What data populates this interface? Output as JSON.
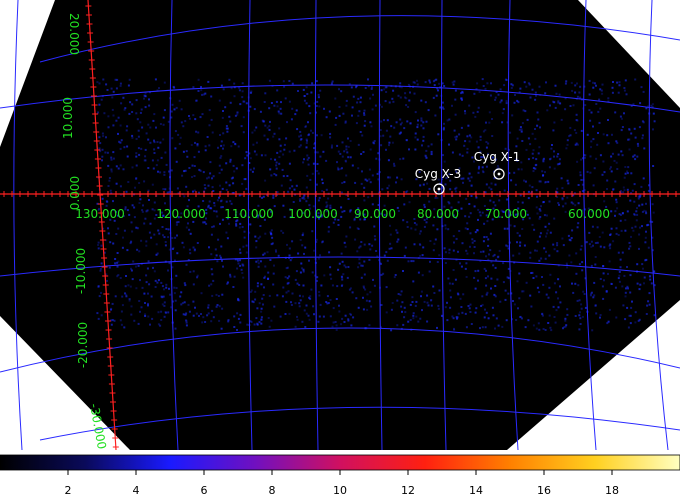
{
  "image": {
    "background_color": "#000000",
    "outside_color": "#ffffff",
    "grid_color": "#2a2aff",
    "ref_axis_color": "#ff2020",
    "label_color": "#22e022",
    "noise_color": "#1a2cff"
  },
  "coord_grid": {
    "longitude_labels": [
      "130.000",
      "120.000",
      "110.000",
      "100.000",
      "90.000",
      "80.000",
      "70.000",
      "60.000"
    ],
    "latitude_labels": [
      "20.000",
      "10.000",
      "0.000",
      "-10.000",
      "-20.000",
      "-30.000"
    ]
  },
  "sources": [
    {
      "name": "Cyg X-1",
      "marker": "circle-dot-marker"
    },
    {
      "name": "Cyg X-3",
      "marker": "circle-dot-marker"
    }
  ],
  "colorbar": {
    "colormap": "heat",
    "stops": [
      "#000000",
      "#0a0a5a",
      "#1a1aff",
      "#7010c0",
      "#d01060",
      "#ff2010",
      "#ff8000",
      "#ffd020",
      "#ffffc0"
    ],
    "tick_labels": [
      "2",
      "4",
      "6",
      "8",
      "10",
      "12",
      "14",
      "16",
      "18"
    ],
    "range": [
      0,
      20
    ]
  }
}
